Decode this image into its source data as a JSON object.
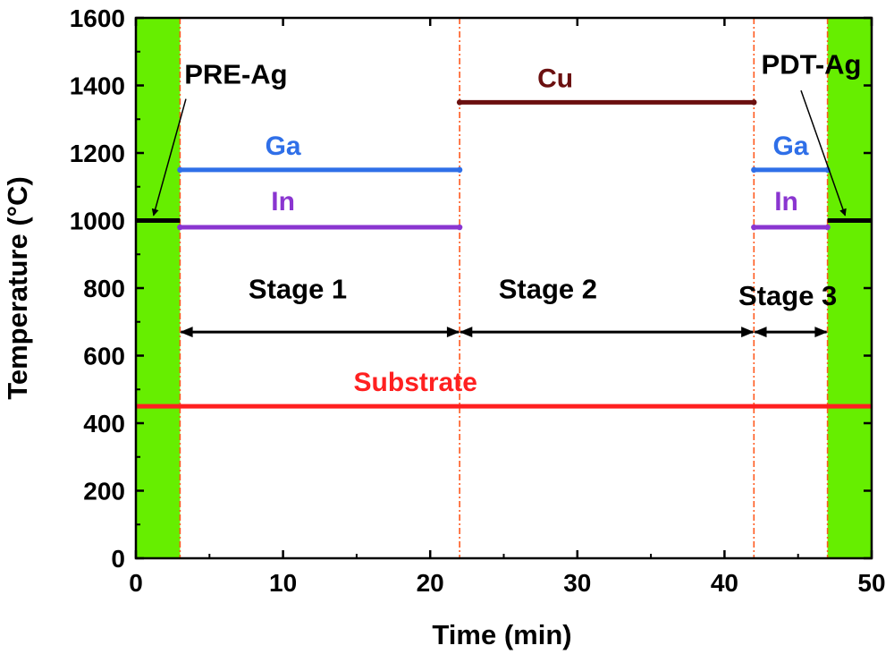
{
  "chart_data": {
    "type": "line",
    "xlabel": "Time (min)",
    "ylabel": "Temperature  (°C)",
    "xlim": [
      0,
      50
    ],
    "ylim": [
      0,
      1600
    ],
    "xticks": [
      0,
      10,
      20,
      30,
      40,
      50
    ],
    "yticks": [
      0,
      200,
      400,
      600,
      800,
      1000,
      1200,
      1400,
      1600
    ],
    "shaded_regions": [
      {
        "x": [
          0,
          3
        ],
        "color": "#66ee00"
      },
      {
        "x": [
          47,
          50
        ],
        "color": "#66ee00"
      }
    ],
    "stage_boundaries": [
      3,
      22,
      42,
      47
    ],
    "series": [
      {
        "name": "Substrate",
        "color": "#ff2020",
        "segments": [
          {
            "x": [
              0,
              50
            ],
            "y": 450
          }
        ]
      },
      {
        "name": "Cu",
        "color": "#6b1010",
        "segments": [
          {
            "x": [
              22,
              42
            ],
            "y": 1350
          }
        ]
      },
      {
        "name": "Ga",
        "color": "#2f6fe8",
        "segments": [
          {
            "x": [
              3,
              22
            ],
            "y": 1150
          },
          {
            "x": [
              42,
              47
            ],
            "y": 1150
          }
        ]
      },
      {
        "name": "In",
        "color": "#8a35d0",
        "segments": [
          {
            "x": [
              3,
              22
            ],
            "y": 980
          },
          {
            "x": [
              42,
              47
            ],
            "y": 980
          }
        ]
      },
      {
        "name": "Ag",
        "color": "#000000",
        "segments": [
          {
            "x": [
              0,
              3
            ],
            "y": 1000
          },
          {
            "x": [
              47,
              50
            ],
            "y": 1000
          }
        ]
      }
    ],
    "series_labels": [
      {
        "text": "Substrate",
        "series": "Substrate",
        "x": 19,
        "y": 495
      },
      {
        "text": "Cu",
        "series": "Cu",
        "x": 28.5,
        "y": 1395
      },
      {
        "text": "Ga",
        "series": "Ga",
        "x": 10,
        "y": 1195
      },
      {
        "text": "In",
        "series": "In",
        "x": 10,
        "y": 1030
      },
      {
        "text": "Ga",
        "series": "Ga",
        "x": 44.5,
        "y": 1195
      },
      {
        "text": "In",
        "series": "In",
        "x": 44.2,
        "y": 1030
      }
    ],
    "stages": [
      {
        "label": "Stage 1",
        "from": 3,
        "to": 22,
        "arrow_y": 670,
        "label_x": 11,
        "label_y": 770
      },
      {
        "label": "Stage 2",
        "from": 22,
        "to": 42,
        "arrow_y": 670,
        "label_x": 28,
        "label_y": 770
      },
      {
        "label": "Stage 3",
        "from": 42,
        "to": 47,
        "arrow_y": 670,
        "label_x": 44.3,
        "label_y": 750
      }
    ],
    "annotations": [
      {
        "text": "PRE-Ag",
        "x": 6.8,
        "y": 1405,
        "arrow_from": [
          3.4,
          1360
        ],
        "arrow_to": [
          1.2,
          1015
        ]
      },
      {
        "text": "PDT-Ag",
        "x": 45.9,
        "y": 1435,
        "arrow_from": [
          45.2,
          1385
        ],
        "arrow_to": [
          48.2,
          1015
        ]
      }
    ]
  }
}
